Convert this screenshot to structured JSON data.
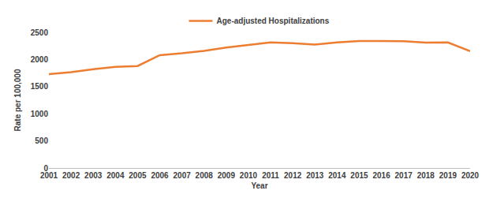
{
  "chart_data": {
    "type": "line",
    "x_label": "Year",
    "y_label": "Rate per 100,000",
    "categories": [
      "2001",
      "2002",
      "2003",
      "2004",
      "2005",
      "2006",
      "2007",
      "2008",
      "2009",
      "2010",
      "2011",
      "2012",
      "2013",
      "2014",
      "2015",
      "2016",
      "2017",
      "2018",
      "2019",
      "2020"
    ],
    "series": [
      {
        "name": "Age-adjusted Hospitalizations",
        "color": "#ed7d31",
        "values": [
          1730,
          1765,
          1820,
          1865,
          1880,
          2080,
          2115,
          2160,
          2220,
          2270,
          2315,
          2300,
          2275,
          2315,
          2340,
          2340,
          2335,
          2310,
          2315,
          2155
        ]
      }
    ],
    "ylim": [
      0,
      2500
    ],
    "yticks": [
      0,
      500,
      1000,
      1500,
      2000,
      2500
    ],
    "grid": false,
    "legend": "top"
  }
}
